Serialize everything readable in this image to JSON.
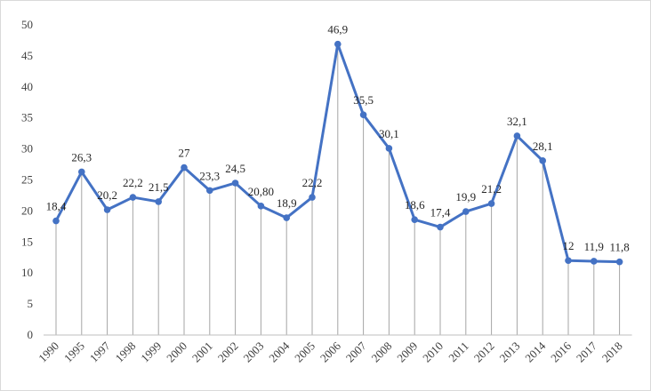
{
  "chart_data": {
    "type": "line",
    "title": "",
    "xlabel": "",
    "ylabel": "",
    "ylim": [
      0,
      50
    ],
    "yticks": [
      0,
      5,
      10,
      15,
      20,
      25,
      30,
      35,
      40,
      45,
      50
    ],
    "grid": "vertical drop lines only",
    "legend": "none",
    "line_color": "#4472c4",
    "drop_line_color": "#a6a6a6",
    "categories": [
      "1990",
      "1995",
      "1997",
      "1998",
      "1999",
      "2000",
      "2001",
      "2002",
      "2003",
      "2004",
      "2005",
      "2006",
      "2007",
      "2008",
      "2009",
      "2010",
      "2011",
      "2012",
      "2013",
      "2014",
      "2016",
      "2017",
      "2018"
    ],
    "series": [
      {
        "values": [
          18.4,
          26.3,
          20.2,
          22.2,
          21.5,
          27,
          23.3,
          24.5,
          20.8,
          18.9,
          22.2,
          46.9,
          35.5,
          30.1,
          18.6,
          17.4,
          19.9,
          21.2,
          32.1,
          28.1,
          12,
          11.9,
          11.8
        ],
        "data_labels": [
          "18,4",
          "26,3",
          "20,2",
          "22,2",
          "21,5",
          "27",
          "23,3",
          "24,5",
          "20,80",
          "18,9",
          "22,2",
          "46,9",
          "35,5",
          "30,1",
          "18,6",
          "17,4",
          "19,9",
          "21,2",
          "32,1",
          "28,1",
          "12",
          "11,9",
          "11,8"
        ]
      }
    ]
  }
}
